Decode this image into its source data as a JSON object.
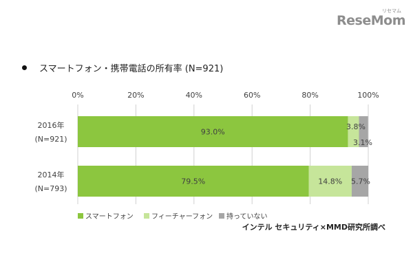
{
  "brand": {
    "logo_text": "ReseMom",
    "logo_subtext": "リセマム"
  },
  "chart_title": "スマートフォン・携帯電話の所有率 (N=921)",
  "source_note": "インテル セキュリティ×MMD研究所調べ",
  "colors": {
    "smartphone": "#8cc63f",
    "featurephone": "#c6e59a",
    "none": "#a6a6a6",
    "grid": "#d0d0d0",
    "text": "#404040"
  },
  "chart_data": {
    "type": "bar",
    "orientation": "horizontal",
    "stacked": true,
    "title": "スマートフォン・携帯電話の所有率 (N=921)",
    "xlim": [
      0,
      100
    ],
    "x_ticks": [
      "0%",
      "20%",
      "40%",
      "60%",
      "80%",
      "100%"
    ],
    "x_tick_values": [
      0,
      20,
      40,
      60,
      80,
      100
    ],
    "grid": true,
    "legend_position": "bottom-left",
    "categories": [
      {
        "year": "2016年",
        "n": "(N=921)"
      },
      {
        "year": "2014年",
        "n": "(N=793)"
      }
    ],
    "series": [
      {
        "name": "スマートフォン",
        "values": [
          93.0,
          79.5
        ],
        "labels": [
          "93.0%",
          "79.5%"
        ]
      },
      {
        "name": "フィーチャーフォン",
        "values": [
          3.8,
          14.8
        ],
        "labels": [
          "3.8%",
          "14.8%"
        ]
      },
      {
        "name": "持っていない",
        "values": [
          3.1,
          5.7
        ],
        "labels": [
          "3.1%",
          "5.7%"
        ]
      }
    ]
  }
}
